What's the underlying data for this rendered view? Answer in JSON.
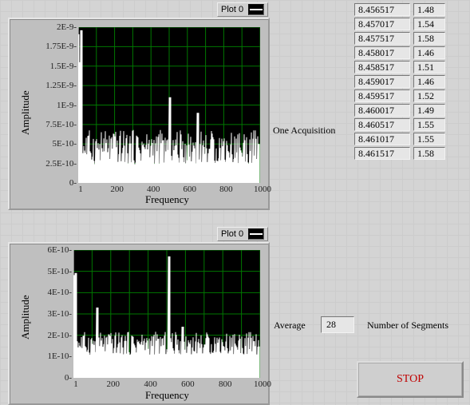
{
  "plot1": {
    "legend_label": "Plot 0",
    "y_label": "Amplitude",
    "x_label": "Frequency",
    "x_ticks": [
      "1",
      "200",
      "400",
      "600",
      "800",
      "1000"
    ],
    "y_ticks": [
      "0-",
      "2.5E-10-",
      "5E-10-",
      "7.5E-10-",
      "1E-9-",
      "1.25E-9-",
      "1.5E-9-",
      "1.75E-9-",
      "2E-9-"
    ],
    "side_label": "One Acquisition",
    "plot_bg": "#000000",
    "grid_color": "#007700",
    "trace_color": "#ffffff"
  },
  "plot2": {
    "legend_label": "Plot 0",
    "y_label": "Amplitude",
    "x_label": "Frequency",
    "x_ticks": [
      "1",
      "200",
      "400",
      "600",
      "800",
      "1000"
    ],
    "y_ticks": [
      "0-",
      "1E-10-",
      "2E-10-",
      "3E-10-",
      "4E-10-",
      "5E-10-",
      "6E-10-"
    ],
    "plot_bg": "#000000",
    "grid_color": "#007700",
    "trace_color": "#ffffff"
  },
  "table": {
    "rows": [
      [
        "8.456517",
        "1.48"
      ],
      [
        "8.457017",
        "1.54"
      ],
      [
        "8.457517",
        "1.58"
      ],
      [
        "8.458017",
        "1.46"
      ],
      [
        "8.458517",
        "1.51"
      ],
      [
        "8.459017",
        "1.46"
      ],
      [
        "8.459517",
        "1.52"
      ],
      [
        "8.460017",
        "1.49"
      ],
      [
        "8.460517",
        "1.55"
      ],
      [
        "8.461017",
        "1.55"
      ],
      [
        "8.461517",
        "1.58"
      ]
    ]
  },
  "average": {
    "label": "Average",
    "value": "28",
    "segments_label": "Number of Segments"
  },
  "stop": {
    "label": "STOP"
  }
}
